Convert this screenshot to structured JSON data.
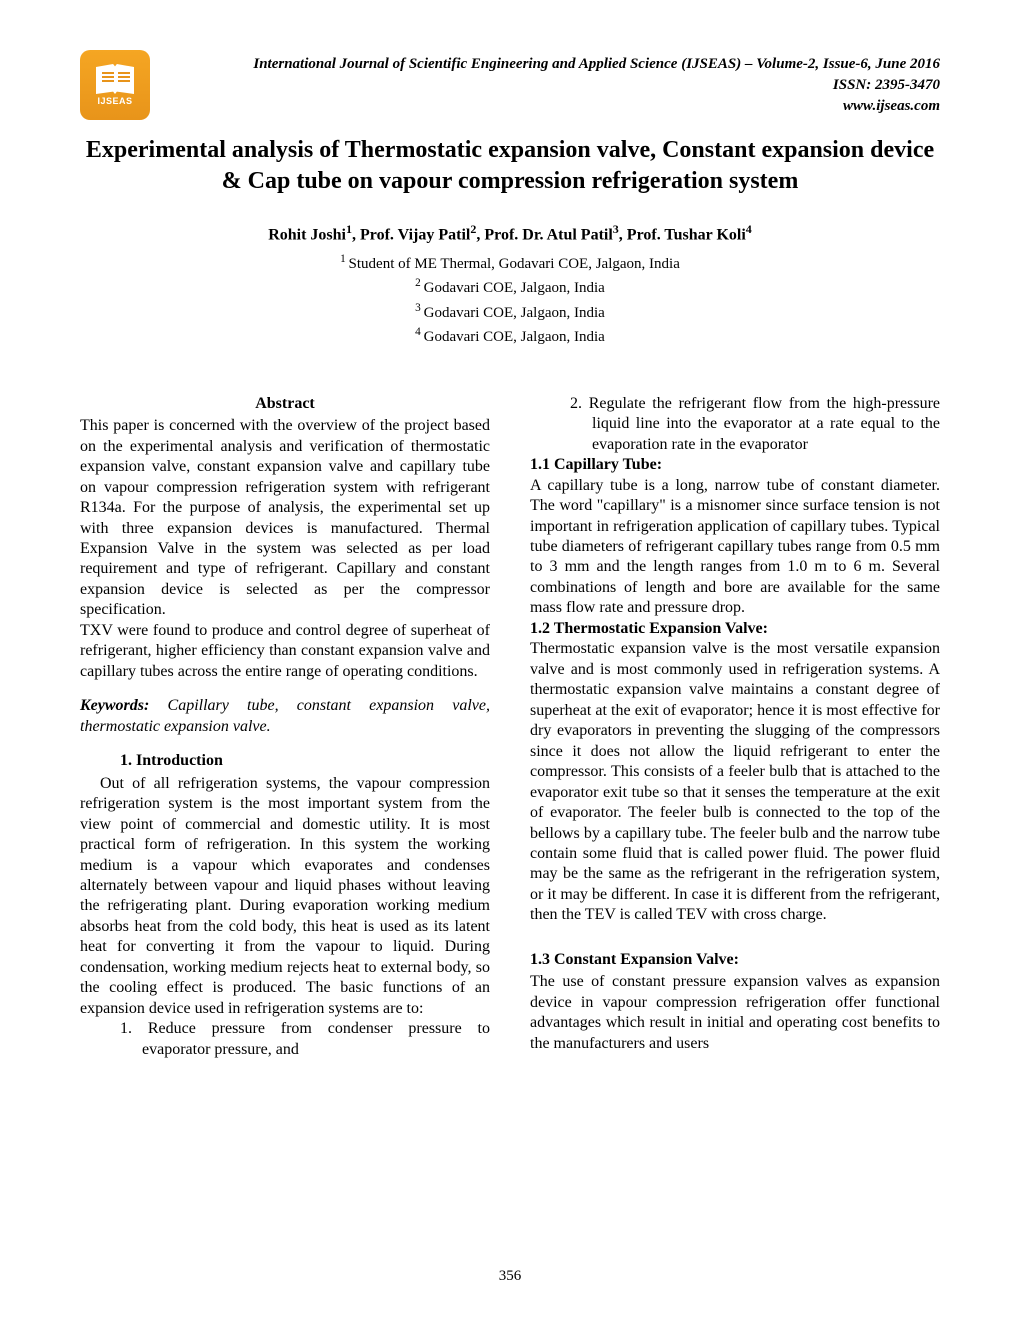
{
  "logo": {
    "text": "IJSEAS"
  },
  "header": {
    "journal_line": "International Journal of Scientific Engineering and Applied Science (IJSEAS) – Volume-2, Issue-6, June  2016",
    "issn": "ISSN: 2395-3470",
    "website": "www.ijseas.com"
  },
  "title": "Experimental analysis of Thermostatic expansion valve, Constant expansion device & Cap tube on vapour compression refrigeration system",
  "authors_html": "Rohit Joshi<sup>1</sup>, Prof. Vijay Patil<sup>2</sup>, Prof. Dr. Atul Patil<sup>3</sup>, Prof. Tushar Koli<sup>4</sup>",
  "affiliations": {
    "a1": "Student of ME Thermal, Godavari COE, Jalgaon, India",
    "a2": "Godavari COE, Jalgaon, India",
    "a3": "Godavari COE, Jalgaon, India",
    "a4": "Godavari COE, Jalgaon, India"
  },
  "left": {
    "abstract_heading": "Abstract",
    "abstract_p1": "This paper is concerned with the overview of the project based on the experimental analysis and verification of thermostatic expansion valve, constant expansion valve and capillary tube on vapour compression refrigeration system with refrigerant R134a. For the purpose of analysis, the experimental set up with three expansion devices is manufactured. Thermal Expansion Valve in the system was selected as per load requirement and type of refrigerant. Capillary and constant expansion device is selected as per the compressor specification.",
    "abstract_p2": "TXV were found to produce and control degree of superheat of refrigerant, higher efficiency than constant expansion valve and capillary tubes across the entire range of operating conditions.",
    "keywords_label": "Keywords:",
    "keywords_text": " Capillary tube, constant expansion valve, thermostatic expansion valve.",
    "intro_heading": "1.    Introduction",
    "intro_p1": "Out of all refrigeration systems, the vapour compression refrigeration system is the most important system from the view point of commercial and domestic utility. It is most practical form of refrigeration. In this system the working medium is a vapour which evaporates and condenses alternately between vapour and liquid phases without leaving the refrigerating plant. During evaporation working medium absorbs heat from the cold body, this heat is used as its latent heat for converting it from the vapour to liquid. During condensation, working medium rejects heat to external body, so the cooling effect is produced. The basic functions of an expansion device used in refrigeration systems are to:",
    "intro_li1": "1. Reduce pressure from condenser pressure to evaporator pressure, and"
  },
  "right": {
    "intro_li2": "2. Regulate the refrigerant flow from the high-pressure liquid line into the evaporator at a rate equal to the evaporation rate in the evaporator",
    "s11_heading": "1.1 Capillary Tube:",
    "s11_p1": "A capillary tube is a long, narrow tube of constant diameter. The word \"capillary\" is a misnomer since surface tension is not important in refrigeration application of capillary tubes. Typical tube diameters of refrigerant capillary tubes range from 0.5 mm to 3 mm and the length ranges from 1.0 m to 6 m. Several combinations of length and bore are available for the same mass flow rate and pressure drop.",
    "s12_heading": "1.2 Thermostatic Expansion Valve:",
    "s12_p1": "Thermostatic expansion valve is the most versatile expansion valve and is most commonly used in refrigeration systems. A thermostatic expansion valve maintains a constant degree of superheat at the exit of evaporator; hence it is most effective for dry evaporators in preventing the slugging of the compressors since it does not allow the liquid refrigerant to enter the compressor. This consists of a feeler bulb that is attached to the evaporator exit tube so that it senses the temperature at the exit of evaporator. The feeler bulb is connected to the top of the bellows by a capillary tube. The feeler bulb and the narrow tube contain some fluid that is called power fluid. The power fluid may be the same as the refrigerant in the refrigeration system, or it may be different. In case it is different from the refrigerant, then the TEV is called TEV with cross charge.",
    "s13_heading": "1.3  Constant Expansion Valve:",
    "s13_p1": "The use of constant pressure expansion valves as expansion device in vapour compression refrigeration offer functional advantages which result in initial and operating cost benefits to the manufacturers and users"
  },
  "page_number": "356"
}
